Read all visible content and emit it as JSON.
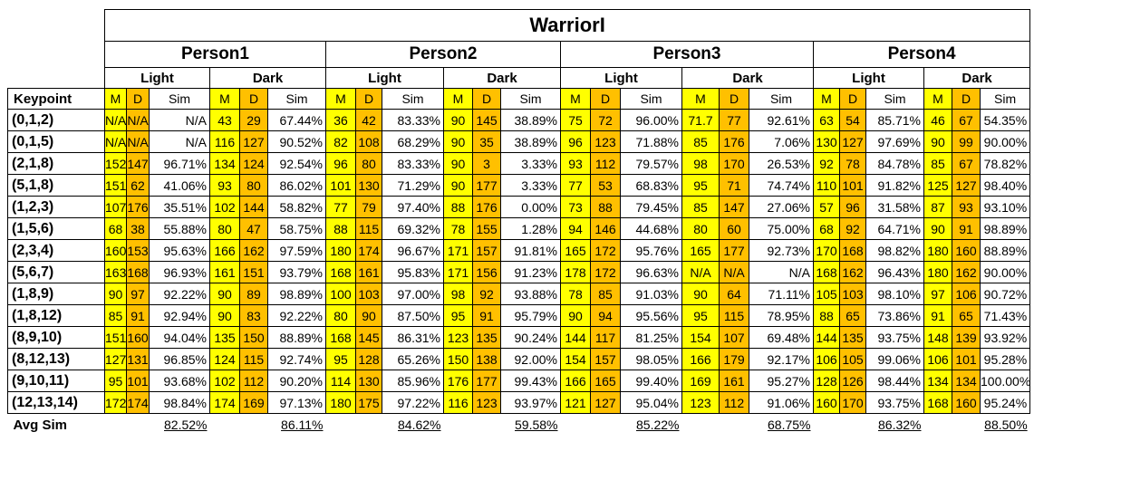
{
  "title": "WarriorI",
  "keypoint_header": "Keypoint",
  "avg_label": "Avg Sim",
  "column_headers": {
    "m": "M",
    "d": "D",
    "sim": "Sim"
  },
  "persons": [
    {
      "name": "Person1",
      "light_label": "Light",
      "dark_label": "Dark",
      "avg_light": "82.52%",
      "avg_dark": "86.11%"
    },
    {
      "name": "Person2",
      "light_label": "Light",
      "dark_label": "Dark",
      "avg_light": "84.62%",
      "avg_dark": "59.58%"
    },
    {
      "name": "Person3",
      "light_label": "Light",
      "dark_label": "Dark",
      "avg_light": "85.22%",
      "avg_dark": "68.75%"
    },
    {
      "name": "Person4",
      "light_label": "Light",
      "dark_label": "Dark",
      "avg_light": "86.32%",
      "avg_dark": "88.50%"
    }
  ],
  "rows": [
    {
      "keypoint": "(0,1,2)",
      "cells": [
        [
          "N/A",
          "N/A",
          "N/A"
        ],
        [
          "43",
          "29",
          "67.44%"
        ],
        [
          "36",
          "42",
          "83.33%"
        ],
        [
          "90",
          "145",
          "38.89%"
        ],
        [
          "75",
          "72",
          "96.00%"
        ],
        [
          "71.7",
          "77",
          "92.61%"
        ],
        [
          "63",
          "54",
          "85.71%"
        ],
        [
          "46",
          "67",
          "54.35%"
        ]
      ]
    },
    {
      "keypoint": "(0,1,5)",
      "cells": [
        [
          "N/A",
          "N/A",
          "N/A"
        ],
        [
          "116",
          "127",
          "90.52%"
        ],
        [
          "82",
          "108",
          "68.29%"
        ],
        [
          "90",
          "35",
          "38.89%"
        ],
        [
          "96",
          "123",
          "71.88%"
        ],
        [
          "85",
          "176",
          "7.06%"
        ],
        [
          "130",
          "127",
          "97.69%"
        ],
        [
          "90",
          "99",
          "90.00%"
        ]
      ]
    },
    {
      "keypoint": "(2,1,8)",
      "cells": [
        [
          "152",
          "147",
          "96.71%"
        ],
        [
          "134",
          "124",
          "92.54%"
        ],
        [
          "96",
          "80",
          "83.33%"
        ],
        [
          "90",
          "3",
          "3.33%"
        ],
        [
          "93",
          "112",
          "79.57%"
        ],
        [
          "98",
          "170",
          "26.53%"
        ],
        [
          "92",
          "78",
          "84.78%"
        ],
        [
          "85",
          "67",
          "78.82%"
        ]
      ]
    },
    {
      "keypoint": "(5,1,8)",
      "cells": [
        [
          "151",
          "62",
          "41.06%"
        ],
        [
          "93",
          "80",
          "86.02%"
        ],
        [
          "101",
          "130",
          "71.29%"
        ],
        [
          "90",
          "177",
          "3.33%"
        ],
        [
          "77",
          "53",
          "68.83%"
        ],
        [
          "95",
          "71",
          "74.74%"
        ],
        [
          "110",
          "101",
          "91.82%"
        ],
        [
          "125",
          "127",
          "98.40%"
        ]
      ]
    },
    {
      "keypoint": "(1,2,3)",
      "cells": [
        [
          "107",
          "176",
          "35.51%"
        ],
        [
          "102",
          "144",
          "58.82%"
        ],
        [
          "77",
          "79",
          "97.40%"
        ],
        [
          "88",
          "176",
          "0.00%"
        ],
        [
          "73",
          "88",
          "79.45%"
        ],
        [
          "85",
          "147",
          "27.06%"
        ],
        [
          "57",
          "96",
          "31.58%"
        ],
        [
          "87",
          "93",
          "93.10%"
        ]
      ]
    },
    {
      "keypoint": "(1,5,6)",
      "cells": [
        [
          "68",
          "38",
          "55.88%"
        ],
        [
          "80",
          "47",
          "58.75%"
        ],
        [
          "88",
          "115",
          "69.32%"
        ],
        [
          "78",
          "155",
          "1.28%"
        ],
        [
          "94",
          "146",
          "44.68%"
        ],
        [
          "80",
          "60",
          "75.00%"
        ],
        [
          "68",
          "92",
          "64.71%"
        ],
        [
          "90",
          "91",
          "98.89%"
        ]
      ]
    },
    {
      "keypoint": "(2,3,4)",
      "cells": [
        [
          "160",
          "153",
          "95.63%"
        ],
        [
          "166",
          "162",
          "97.59%"
        ],
        [
          "180",
          "174",
          "96.67%"
        ],
        [
          "171",
          "157",
          "91.81%"
        ],
        [
          "165",
          "172",
          "95.76%"
        ],
        [
          "165",
          "177",
          "92.73%"
        ],
        [
          "170",
          "168",
          "98.82%"
        ],
        [
          "180",
          "160",
          "88.89%"
        ]
      ]
    },
    {
      "keypoint": "(5,6,7)",
      "cells": [
        [
          "163",
          "168",
          "96.93%"
        ],
        [
          "161",
          "151",
          "93.79%"
        ],
        [
          "168",
          "161",
          "95.83%"
        ],
        [
          "171",
          "156",
          "91.23%"
        ],
        [
          "178",
          "172",
          "96.63%"
        ],
        [
          "N/A",
          "N/A",
          "N/A"
        ],
        [
          "168",
          "162",
          "96.43%"
        ],
        [
          "180",
          "162",
          "90.00%"
        ]
      ]
    },
    {
      "keypoint": "(1,8,9)",
      "cells": [
        [
          "90",
          "97",
          "92.22%"
        ],
        [
          "90",
          "89",
          "98.89%"
        ],
        [
          "100",
          "103",
          "97.00%"
        ],
        [
          "98",
          "92",
          "93.88%"
        ],
        [
          "78",
          "85",
          "91.03%"
        ],
        [
          "90",
          "64",
          "71.11%"
        ],
        [
          "105",
          "103",
          "98.10%"
        ],
        [
          "97",
          "106",
          "90.72%"
        ]
      ]
    },
    {
      "keypoint": "(1,8,12)",
      "cells": [
        [
          "85",
          "91",
          "92.94%"
        ],
        [
          "90",
          "83",
          "92.22%"
        ],
        [
          "80",
          "90",
          "87.50%"
        ],
        [
          "95",
          "91",
          "95.79%"
        ],
        [
          "90",
          "94",
          "95.56%"
        ],
        [
          "95",
          "115",
          "78.95%"
        ],
        [
          "88",
          "65",
          "73.86%"
        ],
        [
          "91",
          "65",
          "71.43%"
        ]
      ]
    },
    {
      "keypoint": "(8,9,10)",
      "cells": [
        [
          "151",
          "160",
          "94.04%"
        ],
        [
          "135",
          "150",
          "88.89%"
        ],
        [
          "168",
          "145",
          "86.31%"
        ],
        [
          "123",
          "135",
          "90.24%"
        ],
        [
          "144",
          "117",
          "81.25%"
        ],
        [
          "154",
          "107",
          "69.48%"
        ],
        [
          "144",
          "135",
          "93.75%"
        ],
        [
          "148",
          "139",
          "93.92%"
        ]
      ]
    },
    {
      "keypoint": "(8,12,13)",
      "cells": [
        [
          "127",
          "131",
          "96.85%"
        ],
        [
          "124",
          "115",
          "92.74%"
        ],
        [
          "95",
          "128",
          "65.26%"
        ],
        [
          "150",
          "138",
          "92.00%"
        ],
        [
          "154",
          "157",
          "98.05%"
        ],
        [
          "166",
          "179",
          "92.17%"
        ],
        [
          "106",
          "105",
          "99.06%"
        ],
        [
          "106",
          "101",
          "95.28%"
        ]
      ]
    },
    {
      "keypoint": "(9,10,11)",
      "cells": [
        [
          "95",
          "101",
          "93.68%"
        ],
        [
          "102",
          "112",
          "90.20%"
        ],
        [
          "114",
          "130",
          "85.96%"
        ],
        [
          "176",
          "177",
          "99.43%"
        ],
        [
          "166",
          "165",
          "99.40%"
        ],
        [
          "169",
          "161",
          "95.27%"
        ],
        [
          "128",
          "126",
          "98.44%"
        ],
        [
          "134",
          "134",
          "100.00%"
        ]
      ]
    },
    {
      "keypoint": "(12,13,14)",
      "cells": [
        [
          "172",
          "174",
          "98.84%"
        ],
        [
          "174",
          "169",
          "97.13%"
        ],
        [
          "180",
          "175",
          "97.22%"
        ],
        [
          "116",
          "123",
          "93.97%"
        ],
        [
          "121",
          "127",
          "95.04%"
        ],
        [
          "123",
          "112",
          "91.06%"
        ],
        [
          "160",
          "170",
          "93.75%"
        ],
        [
          "168",
          "160",
          "95.24%"
        ]
      ]
    }
  ]
}
